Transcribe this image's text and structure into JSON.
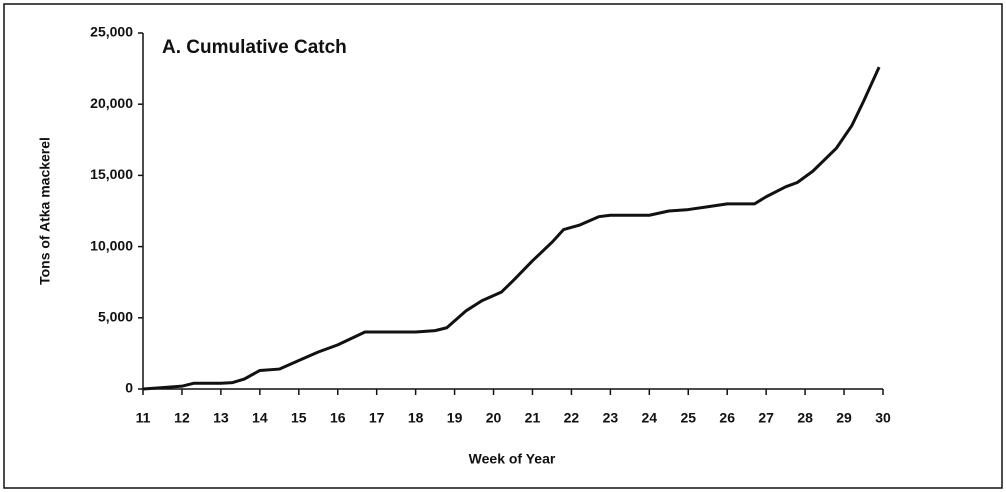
{
  "chart_data": {
    "type": "line",
    "title": "A.  Cumulative Catch",
    "xlabel": "Week of Year",
    "ylabel": "Tons of Atka mackerel",
    "x": [
      11,
      11.5,
      12,
      12.3,
      13,
      13.3,
      13.6,
      14,
      14.5,
      15,
      15.5,
      16,
      16.7,
      17,
      18,
      18.5,
      18.8,
      19.3,
      19.7,
      20.2,
      20.5,
      21,
      21.5,
      21.8,
      22.2,
      22.7,
      23,
      24,
      24.5,
      25,
      25.5,
      26,
      26.7,
      27,
      27.5,
      27.8,
      28.2,
      28.8,
      29.2,
      29.5,
      29.9
    ],
    "series": [
      {
        "name": "Cumulative Catch",
        "color": "#111111",
        "values": [
          0,
          100,
          200,
          400,
          400,
          450,
          700,
          1300,
          1400,
          2000,
          2600,
          3100,
          4000,
          4000,
          4000,
          4100,
          4300,
          5500,
          6200,
          6800,
          7600,
          9000,
          10300,
          11200,
          11500,
          12100,
          12200,
          12200,
          12500,
          12600,
          12800,
          13000,
          13000,
          13500,
          14200,
          14500,
          15300,
          16900,
          18500,
          20200,
          22600
        ]
      }
    ],
    "xlim": [
      11,
      30
    ],
    "xticks": [
      11,
      12,
      13,
      14,
      15,
      16,
      17,
      18,
      19,
      20,
      21,
      22,
      23,
      24,
      25,
      26,
      27,
      28,
      29,
      30
    ],
    "ylim": [
      0,
      25000
    ],
    "yticks": [
      0,
      {
        "value": 5000,
        "label": "5,000"
      },
      {
        "value": 10000,
        "label": "10,000"
      },
      {
        "value": 15000,
        "label": "15,000"
      },
      {
        "value": 20000,
        "label": "20,000"
      },
      {
        "value": 25000,
        "label": "25,000"
      }
    ],
    "grid": false
  }
}
